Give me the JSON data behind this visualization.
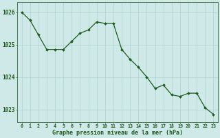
{
  "x": [
    0,
    1,
    2,
    3,
    4,
    5,
    6,
    7,
    8,
    9,
    10,
    11,
    12,
    13,
    14,
    15,
    16,
    17,
    18,
    19,
    20,
    21,
    22,
    23
  ],
  "y": [
    1026.0,
    1025.75,
    1025.3,
    1024.85,
    1024.85,
    1024.85,
    1025.1,
    1025.35,
    1025.45,
    1025.7,
    1025.65,
    1025.65,
    1024.85,
    1024.55,
    1024.3,
    1024.0,
    1023.65,
    1023.75,
    1023.45,
    1023.4,
    1023.5,
    1023.5,
    1023.05,
    1022.85
  ],
  "bg_color": "#cfe8e8",
  "line_color": "#1e5c1e",
  "marker_color": "#1e5c1e",
  "grid_color_major": "#aed0d0",
  "grid_color_minor": "#c4e4e4",
  "axis_label_color": "#1e5c1e",
  "tick_color": "#1e5c1e",
  "xlabel": "Graphe pression niveau de la mer (hPa)",
  "ylim": [
    1022.6,
    1026.3
  ],
  "yticks": [
    1023,
    1024,
    1025,
    1026
  ],
  "xtick_labels": [
    "0",
    "1",
    "2",
    "3",
    "4",
    "5",
    "6",
    "7",
    "8",
    "9",
    "10",
    "11",
    "12",
    "13",
    "14",
    "15",
    "16",
    "17",
    "18",
    "19",
    "20",
    "21",
    "22",
    "23"
  ],
  "spine_color": "#4a7a4a",
  "figsize": [
    3.2,
    2.0
  ],
  "dpi": 100
}
